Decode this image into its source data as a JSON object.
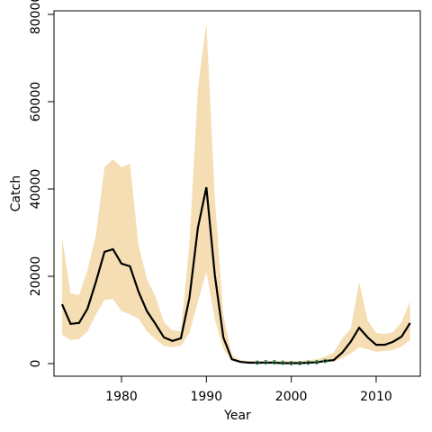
{
  "chart_data": {
    "type": "line",
    "x_label": "Year",
    "y_label": "Catch",
    "x": [
      1973,
      1974,
      1975,
      1976,
      1977,
      1978,
      1979,
      1980,
      1981,
      1982,
      1983,
      1984,
      1985,
      1986,
      1987,
      1988,
      1989,
      1990,
      1991,
      1992,
      1993,
      1994,
      1995,
      1996,
      1997,
      1998,
      1999,
      2000,
      2001,
      2002,
      2003,
      2004,
      2005,
      2006,
      2007,
      2008,
      2009,
      2010,
      2011,
      2012,
      2013,
      2014
    ],
    "median": {
      "color": "#000000",
      "values": [
        13600,
        9100,
        9300,
        12600,
        18800,
        25600,
        26200,
        22900,
        22300,
        16500,
        12000,
        9100,
        6000,
        5200,
        5800,
        15000,
        31100,
        40400,
        20200,
        6000,
        1000,
        400,
        200,
        200,
        200,
        200,
        100,
        100,
        100,
        200,
        300,
        600,
        800,
        2500,
        5000,
        8200,
        6000,
        4300,
        4300,
        5000,
        6200,
        9300
      ]
    },
    "upper": {
      "values": [
        28900,
        16100,
        15700,
        21400,
        29700,
        45000,
        46800,
        45000,
        45800,
        27200,
        19400,
        15300,
        9500,
        7600,
        7400,
        27200,
        63100,
        78100,
        37900,
        11100,
        1900,
        800,
        600,
        600,
        600,
        600,
        600,
        600,
        600,
        800,
        1000,
        1600,
        2500,
        5800,
        8000,
        18600,
        9900,
        7000,
        6800,
        7200,
        9500,
        14200
      ]
    },
    "lower": {
      "values": [
        6600,
        5400,
        5600,
        7400,
        11300,
        14600,
        14800,
        12000,
        11300,
        10300,
        7400,
        5600,
        4100,
        3700,
        4100,
        7000,
        14200,
        21000,
        10100,
        3300,
        600,
        200,
        100,
        100,
        100,
        100,
        100,
        100,
        100,
        100,
        100,
        400,
        400,
        1200,
        2300,
        3700,
        3300,
        2700,
        2900,
        3100,
        3900,
        5400
      ]
    },
    "band_color": "#f5deb3",
    "observed": {
      "color": "#2e8b57",
      "x": [
        1996,
        1997,
        1998,
        1999,
        2000,
        2001,
        2002,
        2003,
        2004
      ],
      "values": [
        200,
        300,
        300,
        200,
        100,
        100,
        200,
        300,
        600
      ]
    },
    "xlim": [
      1972.05,
      2015.2
    ],
    "ylim": [
      -2887,
      80825
    ],
    "xticks": [
      1980,
      1990,
      2000,
      2010
    ],
    "yticks": [
      0,
      20000,
      40000,
      60000,
      80000
    ]
  }
}
